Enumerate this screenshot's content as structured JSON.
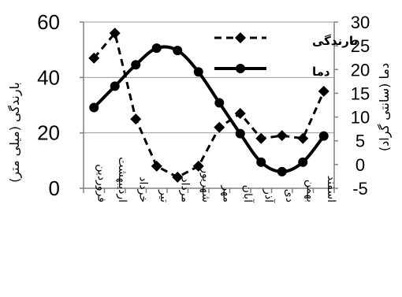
{
  "chart_data": {
    "type": "line",
    "categories": [
      "فروردین",
      "اردیبهشت",
      "خرداد",
      "تیر",
      "مرداد",
      "شهریور",
      "مهر",
      "آبان",
      "آذر",
      "دی",
      "بهمن",
      "اسفند"
    ],
    "y_left": {
      "label": "بارندگی (میلی متر)",
      "range": [
        0,
        60
      ],
      "ticks": [
        "0",
        "20",
        "40",
        "60"
      ]
    },
    "y_right": {
      "label": "دما (سانتی گراد)",
      "range": [
        -5,
        30
      ],
      "ticks": [
        "-5",
        "0",
        "5",
        "10",
        "15",
        "20",
        "25",
        "30"
      ]
    },
    "grid": "horizontal",
    "legend_position": "top-right",
    "series": [
      {
        "name": "بارندگی",
        "axis": "left",
        "style": "dashed",
        "marker": "diamond",
        "color": "#000000",
        "values": [
          47,
          56,
          25,
          8,
          4,
          8,
          22,
          27,
          18,
          19,
          18,
          35
        ]
      },
      {
        "name": "دما",
        "axis": "right",
        "style": "solid",
        "marker": "circle",
        "color": "#000000",
        "values": [
          12,
          16.5,
          21,
          24.5,
          24,
          19.5,
          13,
          6.5,
          0.5,
          -1.5,
          0.5,
          6
        ]
      }
    ]
  }
}
